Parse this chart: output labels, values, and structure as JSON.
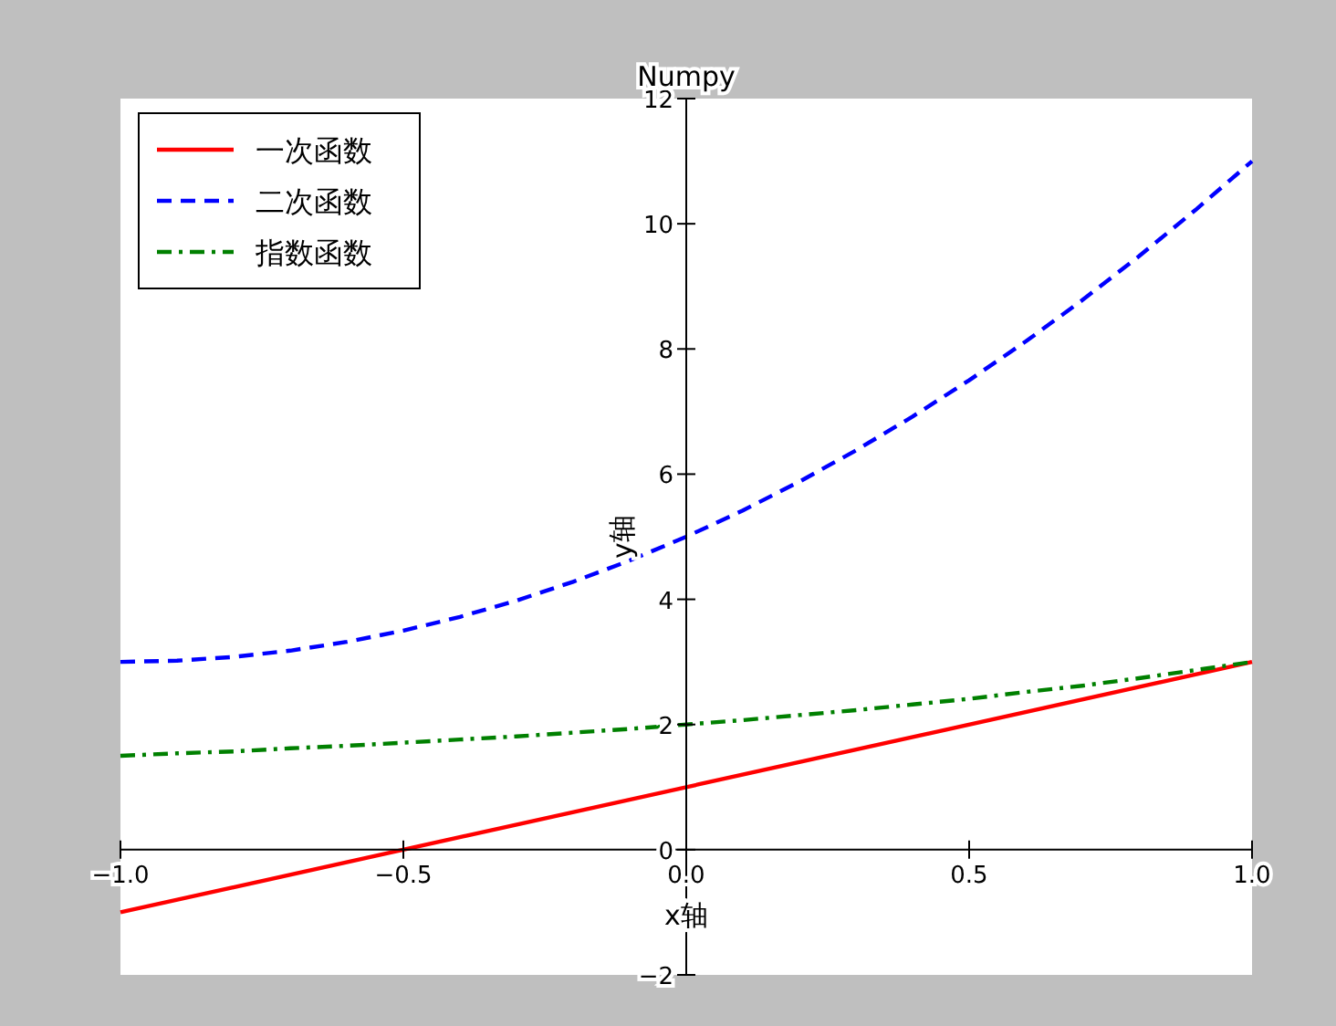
{
  "chart_data": {
    "type": "line",
    "title": "Numpy",
    "xlabel": "x轴",
    "ylabel": "y轴",
    "xlim": [
      -1,
      1
    ],
    "ylim": [
      -2,
      12
    ],
    "xticks": [
      {
        "value": -1,
        "label": "−1.0"
      },
      {
        "value": -0.5,
        "label": "−0.5"
      },
      {
        "value": 0,
        "label": "0.0"
      },
      {
        "value": 0.5,
        "label": "0.5"
      },
      {
        "value": 1,
        "label": "1.0"
      }
    ],
    "yticks": [
      {
        "value": -2,
        "label": "−2"
      },
      0,
      2,
      4,
      6,
      8,
      10,
      12
    ],
    "legend": "top left",
    "grid": false,
    "series": [
      {
        "name": "一次函数",
        "color": "#ff0000",
        "line_style": "solid",
        "x": [
          -1,
          0,
          1
        ],
        "values": [
          -1,
          1,
          3
        ]
      },
      {
        "name": "二次函数",
        "color": "#0000ff",
        "line_style": "dashed",
        "x": [
          -1,
          -0.9,
          -0.8,
          -0.7,
          -0.6,
          -0.5,
          -0.4,
          -0.3,
          -0.2,
          -0.1,
          0,
          0.1,
          0.2,
          0.3,
          0.4,
          0.5,
          0.6,
          0.7,
          0.8,
          0.9,
          1
        ],
        "values": [
          3,
          3.02,
          3.08,
          3.18,
          3.32,
          3.5,
          3.72,
          3.98,
          4.28,
          4.62,
          5,
          5.42,
          5.88,
          6.38,
          6.92,
          7.5,
          8.12,
          8.78,
          9.48,
          10.22,
          11
        ]
      },
      {
        "name": "指数函数",
        "color": "#008000",
        "line_style": "dashdot",
        "x": [
          -1,
          -0.9,
          -0.8,
          -0.7,
          -0.6,
          -0.5,
          -0.4,
          -0.3,
          -0.2,
          -0.1,
          0,
          0.1,
          0.2,
          0.3,
          0.4,
          0.5,
          0.6,
          0.7,
          0.8,
          0.9,
          1
        ],
        "values": [
          1.5,
          1.54,
          1.57,
          1.62,
          1.66,
          1.71,
          1.76,
          1.81,
          1.87,
          1.93,
          2,
          2.07,
          2.15,
          2.23,
          2.32,
          2.41,
          2.52,
          2.62,
          2.74,
          2.87,
          3
        ]
      }
    ]
  }
}
